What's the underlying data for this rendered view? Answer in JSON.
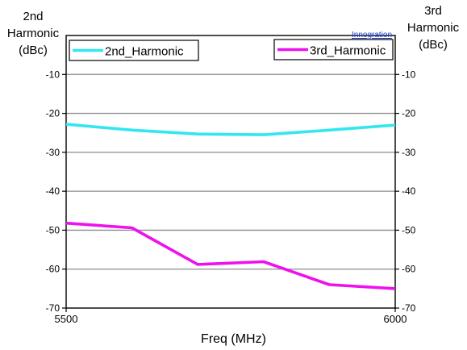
{
  "chart_data": {
    "type": "line",
    "xlabel": "Freq (MHz)",
    "ylabel_left_lines": [
      "2nd",
      "Harmonic",
      "(dBc)"
    ],
    "ylabel_right_lines": [
      "3rd",
      "Harmonic",
      "(dBc)"
    ],
    "xlim": [
      5500,
      6000
    ],
    "ylim": [
      -70,
      0
    ],
    "x_ticks": [
      5500,
      6000
    ],
    "y_ticks": [
      -70,
      -60,
      -50,
      -40,
      -30,
      -20,
      -10
    ],
    "grid": true,
    "series": [
      {
        "name": "2nd_Harmonic",
        "color": "#33e6f0",
        "axis": "left",
        "x": [
          5500,
          5600,
          5700,
          5800,
          5900,
          6000
        ],
        "values": [
          -22.8,
          -24.3,
          -25.3,
          -25.5,
          -24.3,
          -23.0
        ]
      },
      {
        "name": "3rd_Harmonic",
        "color": "#ee11ee",
        "axis": "right",
        "x": [
          5500,
          5600,
          5700,
          5800,
          5900,
          6000
        ],
        "values": [
          -48.2,
          -49.4,
          -58.8,
          -58.1,
          -64.0,
          -65.0
        ]
      }
    ]
  },
  "brand": "Innogration"
}
